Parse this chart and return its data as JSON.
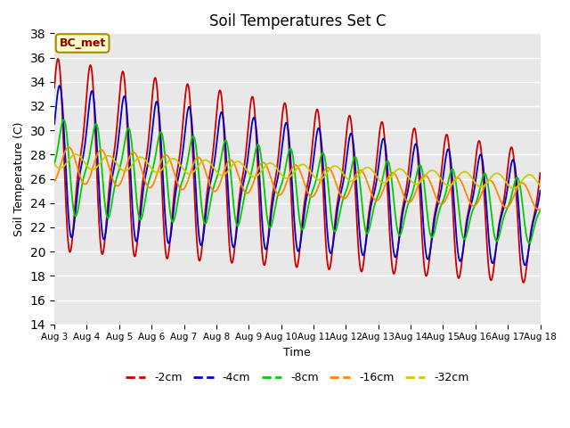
{
  "title": "Soil Temperatures Set C",
  "xlabel": "Time",
  "ylabel": "Soil Temperature (C)",
  "ylim": [
    14,
    38
  ],
  "yticks": [
    14,
    16,
    18,
    20,
    22,
    24,
    26,
    28,
    30,
    32,
    34,
    36,
    38
  ],
  "x_labels": [
    "Aug 3",
    "Aug 4",
    "Aug 5",
    "Aug 6",
    "Aug 7",
    "Aug 8",
    "Aug 9",
    "Aug 10",
    "Aug 11",
    "Aug 12",
    "Aug 13",
    "Aug 14",
    "Aug 15",
    "Aug 16",
    "Aug 17",
    "Aug 18"
  ],
  "series_labels": [
    "-2cm",
    "-4cm",
    "-8cm",
    "-16cm",
    "-32cm"
  ],
  "series_colors": [
    "#cc0000",
    "#0000cc",
    "#00cc00",
    "#ff8800",
    "#cccc00"
  ],
  "annotation_text": "BC_met",
  "annotation_bg": "#ffffcc",
  "annotation_border": "#aa8800",
  "background_color": "#e8e8e8",
  "grid_color": "#ffffff",
  "n_points": 1500
}
